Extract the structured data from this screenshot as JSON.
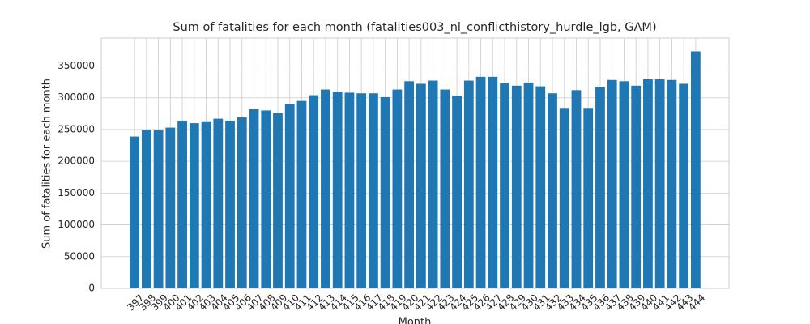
{
  "chart_data": {
    "type": "bar",
    "title": "Sum of fatalities for each month (fatalities003_nl_conflicthistory_hurdle_lgb, GAM)",
    "x_label": "Month",
    "y_label": "Sum of fatalities for each month",
    "x": [
      397,
      398,
      399,
      400,
      401,
      402,
      403,
      404,
      405,
      406,
      407,
      408,
      409,
      410,
      411,
      412,
      413,
      414,
      415,
      416,
      417,
      418,
      419,
      420,
      421,
      422,
      423,
      424,
      425,
      426,
      427,
      428,
      429,
      430,
      431,
      432,
      433,
      434,
      435,
      436,
      437,
      438,
      439,
      440,
      441,
      442,
      443,
      444
    ],
    "values": [
      239000,
      249000,
      249000,
      253000,
      264000,
      260000,
      263000,
      267000,
      264000,
      269000,
      282000,
      280000,
      276000,
      290000,
      295000,
      304000,
      313000,
      309000,
      308000,
      307000,
      307000,
      301000,
      313000,
      326000,
      322000,
      327000,
      313000,
      303000,
      327000,
      333000,
      333000,
      323000,
      319000,
      324000,
      318000,
      307000,
      284000,
      312000,
      284000,
      317000,
      328000,
      326000,
      319000,
      329000,
      329000,
      328000,
      322000,
      373000
    ],
    "color": "#1f77b4",
    "xlim": [
      394.21,
      446.79
    ],
    "xticks": [
      397,
      398,
      399,
      400,
      401,
      402,
      403,
      404,
      405,
      406,
      407,
      408,
      409,
      410,
      411,
      412,
      413,
      414,
      415,
      416,
      417,
      418,
      419,
      420,
      421,
      422,
      423,
      424,
      425,
      426,
      427,
      428,
      429,
      430,
      431,
      432,
      433,
      434,
      435,
      436,
      437,
      438,
      439,
      440,
      441,
      442,
      443,
      444
    ],
    "ylim": [
      0,
      394000
    ],
    "yticks": [
      0,
      50000,
      100000,
      150000,
      200000,
      250000,
      300000,
      350000
    ],
    "grid": true
  }
}
